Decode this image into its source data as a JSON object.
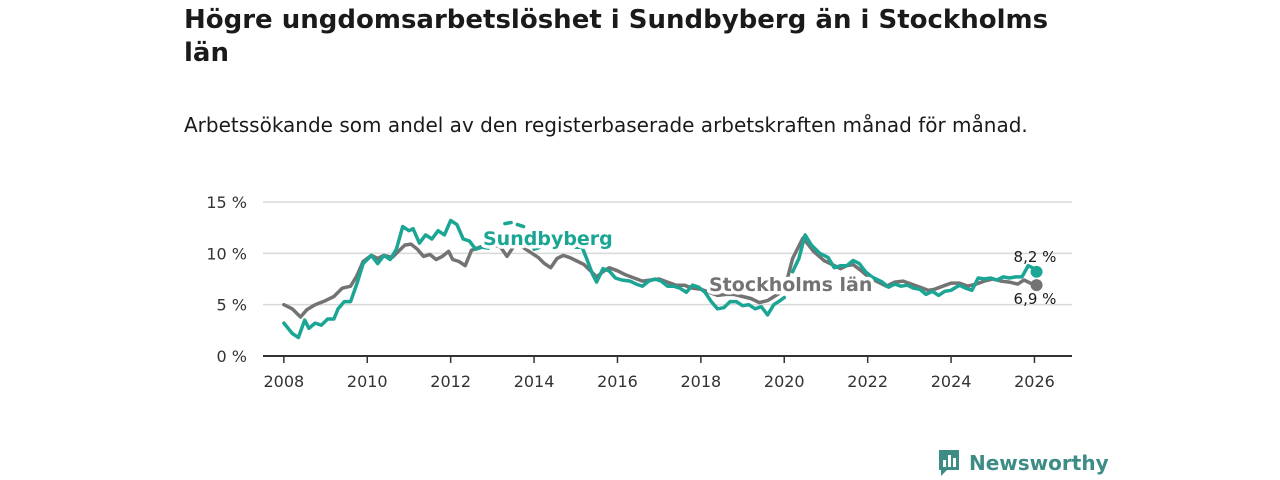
{
  "title": "Högre ungdomsarbetslöshet i Sundbyberg än i Stockholms län",
  "subtitle": "Arbetssökande som andel av den registerbaserade arbetskraften månad för månad.",
  "brand": {
    "name": "Newsworthy",
    "color": "#3d8c86",
    "icon": "bar-chart-speech-icon"
  },
  "colors": {
    "sundbyberg": "#1aa594",
    "stockholm": "#737373",
    "grid": "#d9d9d9",
    "axis": "#333333"
  },
  "chart_data": {
    "type": "line",
    "title": "Högre ungdomsarbetslöshet i Sundbyberg än i Stockholms län",
    "xlabel": "",
    "ylabel": "",
    "xlim": [
      2007.5,
      2026.9
    ],
    "ylim": [
      0,
      15
    ],
    "y_ticks": [
      0,
      5,
      10,
      15
    ],
    "y_tick_labels": [
      "0 %",
      "5 %",
      "10 %",
      "15 %"
    ],
    "x_ticks": [
      2008,
      2010,
      2012,
      2014,
      2016,
      2018,
      2020,
      2022,
      2024,
      2026
    ],
    "x_tick_labels": [
      "2008",
      "2010",
      "2012",
      "2014",
      "2016",
      "2018",
      "2020",
      "2022",
      "2024",
      "2026"
    ],
    "grid": true,
    "series": [
      {
        "name": "Stockholms län",
        "label": "Stockholms län",
        "end_label": "6,9 %",
        "points": [
          [
            2008.0,
            5.0
          ],
          [
            2008.2,
            4.6
          ],
          [
            2008.4,
            3.8
          ],
          [
            2008.55,
            4.5
          ],
          [
            2008.75,
            5.0
          ],
          [
            2009.0,
            5.4
          ],
          [
            2009.2,
            5.8
          ],
          [
            2009.4,
            6.6
          ],
          [
            2009.6,
            6.8
          ],
          [
            2009.75,
            7.8
          ],
          [
            2009.9,
            9.2
          ],
          [
            2010.1,
            9.8
          ],
          [
            2010.25,
            9.5
          ],
          [
            2010.4,
            9.8
          ],
          [
            2010.6,
            9.6
          ],
          [
            2010.75,
            10.2
          ],
          [
            2010.9,
            10.8
          ],
          [
            2011.05,
            10.9
          ],
          [
            2011.2,
            10.4
          ],
          [
            2011.35,
            9.7
          ],
          [
            2011.5,
            9.9
          ],
          [
            2011.65,
            9.4
          ],
          [
            2011.8,
            9.7
          ],
          [
            2011.95,
            10.2
          ],
          [
            2012.05,
            9.4
          ],
          [
            2012.2,
            9.2
          ],
          [
            2012.35,
            8.8
          ],
          [
            2012.5,
            10.3
          ],
          [
            2012.7,
            10.6
          ],
          [
            2012.85,
            10.9
          ],
          [
            2013.0,
            10.9
          ],
          [
            2013.2,
            10.6
          ],
          [
            2013.35,
            9.7
          ],
          [
            2013.5,
            10.6
          ],
          [
            2013.65,
            10.8
          ],
          [
            2013.8,
            10.4
          ],
          [
            2013.95,
            10.0
          ],
          [
            2014.1,
            9.6
          ],
          [
            2014.25,
            9.0
          ],
          [
            2014.4,
            8.6
          ],
          [
            2014.55,
            9.5
          ],
          [
            2014.7,
            9.8
          ],
          [
            2014.85,
            9.6
          ],
          [
            2015.0,
            9.3
          ],
          [
            2015.2,
            8.9
          ],
          [
            2015.35,
            8.3
          ],
          [
            2015.5,
            7.7
          ],
          [
            2015.65,
            8.2
          ],
          [
            2015.8,
            8.6
          ],
          [
            2016.0,
            8.3
          ],
          [
            2016.2,
            7.9
          ],
          [
            2016.4,
            7.6
          ],
          [
            2016.6,
            7.3
          ],
          [
            2016.8,
            7.4
          ],
          [
            2017.0,
            7.5
          ],
          [
            2017.2,
            7.2
          ],
          [
            2017.4,
            6.9
          ],
          [
            2017.6,
            6.9
          ],
          [
            2017.8,
            6.6
          ],
          [
            2018.0,
            6.5
          ],
          [
            2018.2,
            6.2
          ],
          [
            2018.4,
            5.9
          ],
          [
            2018.6,
            6.0
          ],
          [
            2018.8,
            6.0
          ],
          [
            2019.0,
            5.8
          ],
          [
            2019.2,
            5.6
          ],
          [
            2019.4,
            5.2
          ],
          [
            2019.6,
            5.4
          ],
          [
            2019.8,
            5.9
          ],
          [
            2020.0,
            6.4
          ],
          [
            2020.2,
            9.5
          ],
          [
            2020.45,
            11.5
          ],
          [
            2020.7,
            10.2
          ],
          [
            2020.95,
            9.3
          ],
          [
            2021.15,
            8.9
          ],
          [
            2021.35,
            8.5
          ],
          [
            2021.5,
            8.8
          ],
          [
            2021.65,
            8.9
          ],
          [
            2021.85,
            8.3
          ],
          [
            2022.05,
            7.6
          ],
          [
            2022.25,
            7.2
          ],
          [
            2022.45,
            6.8
          ],
          [
            2022.65,
            7.2
          ],
          [
            2022.85,
            7.3
          ],
          [
            2023.05,
            7.0
          ],
          [
            2023.25,
            6.7
          ],
          [
            2023.45,
            6.4
          ],
          [
            2023.6,
            6.5
          ],
          [
            2023.8,
            6.8
          ],
          [
            2024.0,
            7.1
          ],
          [
            2024.2,
            7.1
          ],
          [
            2024.4,
            6.8
          ],
          [
            2024.6,
            7.0
          ],
          [
            2024.8,
            7.3
          ],
          [
            2025.0,
            7.5
          ],
          [
            2025.2,
            7.3
          ],
          [
            2025.4,
            7.2
          ],
          [
            2025.6,
            7.0
          ],
          [
            2025.75,
            7.4
          ],
          [
            2025.9,
            7.1
          ],
          [
            2026.05,
            6.9
          ]
        ]
      },
      {
        "name": "Sundbyberg",
        "label": "Sundbyberg",
        "end_label": "8,2 %",
        "segments": [
          [
            [
              2008.0,
              3.2
            ],
            [
              2008.2,
              2.2
            ],
            [
              2008.35,
              1.8
            ],
            [
              2008.5,
              3.5
            ],
            [
              2008.6,
              2.7
            ],
            [
              2008.75,
              3.2
            ],
            [
              2008.9,
              3.0
            ],
            [
              2009.05,
              3.6
            ],
            [
              2009.2,
              3.6
            ],
            [
              2009.3,
              4.6
            ],
            [
              2009.45,
              5.3
            ],
            [
              2009.6,
              5.3
            ],
            [
              2009.75,
              7.0
            ],
            [
              2009.9,
              9.0
            ],
            [
              2010.1,
              9.8
            ],
            [
              2010.25,
              9.0
            ],
            [
              2010.4,
              9.8
            ],
            [
              2010.55,
              9.4
            ],
            [
              2010.7,
              10.4
            ],
            [
              2010.85,
              12.6
            ],
            [
              2011.0,
              12.2
            ],
            [
              2011.1,
              12.4
            ],
            [
              2011.25,
              11.0
            ],
            [
              2011.4,
              11.8
            ],
            [
              2011.55,
              11.4
            ],
            [
              2011.7,
              12.2
            ],
            [
              2011.85,
              11.8
            ],
            [
              2012.0,
              13.2
            ],
            [
              2012.15,
              12.8
            ],
            [
              2012.3,
              11.4
            ],
            [
              2012.45,
              11.2
            ],
            [
              2012.6,
              10.4
            ],
            [
              2012.75,
              10.6
            ],
            [
              2012.9,
              10.5
            ],
            [
              2013.05,
              11.5
            ]
          ],
          [
            [
              2013.3,
              12.9
            ],
            [
              2013.45,
              13.0
            ]
          ],
          [
            [
              2013.6,
              12.8
            ],
            [
              2013.75,
              12.6
            ]
          ],
          [
            [
              2014.0,
              10.4
            ],
            [
              2014.15,
              10.6
            ]
          ],
          [
            [
              2015.0,
              10.6
            ],
            [
              2015.15,
              10.6
            ],
            [
              2015.25,
              9.6
            ],
            [
              2015.4,
              8.0
            ],
            [
              2015.5,
              7.2
            ],
            [
              2015.65,
              8.5
            ],
            [
              2015.8,
              8.3
            ],
            [
              2015.95,
              7.6
            ],
            [
              2016.1,
              7.4
            ],
            [
              2016.3,
              7.3
            ],
            [
              2016.45,
              7.0
            ],
            [
              2016.6,
              6.8
            ],
            [
              2016.75,
              7.3
            ],
            [
              2016.9,
              7.5
            ],
            [
              2017.05,
              7.3
            ],
            [
              2017.2,
              6.8
            ],
            [
              2017.35,
              6.8
            ],
            [
              2017.5,
              6.6
            ],
            [
              2017.65,
              6.2
            ],
            [
              2017.8,
              6.9
            ],
            [
              2017.95,
              6.7
            ],
            [
              2018.1,
              6.2
            ],
            [
              2018.25,
              5.3
            ],
            [
              2018.4,
              4.6
            ],
            [
              2018.55,
              4.7
            ],
            [
              2018.7,
              5.3
            ],
            [
              2018.85,
              5.3
            ],
            [
              2019.0,
              4.9
            ],
            [
              2019.15,
              5.0
            ],
            [
              2019.3,
              4.6
            ],
            [
              2019.45,
              4.8
            ],
            [
              2019.6,
              4.0
            ],
            [
              2019.75,
              5.0
            ],
            [
              2019.9,
              5.4
            ],
            [
              2020.0,
              5.7
            ]
          ],
          [
            [
              2020.2,
              8.2
            ],
            [
              2020.35,
              9.5
            ],
            [
              2020.5,
              11.8
            ],
            [
              2020.65,
              10.8
            ],
            [
              2020.85,
              10.0
            ],
            [
              2021.05,
              9.6
            ],
            [
              2021.2,
              8.6
            ],
            [
              2021.35,
              8.8
            ],
            [
              2021.5,
              8.8
            ],
            [
              2021.65,
              9.3
            ],
            [
              2021.8,
              9.0
            ],
            [
              2021.95,
              8.2
            ],
            [
              2022.1,
              7.7
            ],
            [
              2022.2,
              7.5
            ],
            [
              2022.35,
              7.2
            ],
            [
              2022.5,
              6.7
            ],
            [
              2022.65,
              7.0
            ],
            [
              2022.8,
              6.8
            ],
            [
              2022.95,
              6.9
            ],
            [
              2023.1,
              6.6
            ],
            [
              2023.25,
              6.5
            ],
            [
              2023.4,
              6.0
            ],
            [
              2023.55,
              6.3
            ],
            [
              2023.7,
              5.9
            ],
            [
              2023.85,
              6.3
            ],
            [
              2024.0,
              6.4
            ],
            [
              2024.2,
              6.9
            ],
            [
              2024.35,
              6.6
            ],
            [
              2024.5,
              6.4
            ],
            [
              2024.65,
              7.6
            ],
            [
              2024.8,
              7.5
            ],
            [
              2024.95,
              7.6
            ],
            [
              2025.1,
              7.4
            ],
            [
              2025.25,
              7.7
            ],
            [
              2025.4,
              7.6
            ],
            [
              2025.55,
              7.7
            ],
            [
              2025.7,
              7.7
            ],
            [
              2025.85,
              8.8
            ],
            [
              2025.95,
              8.6
            ],
            [
              2026.05,
              8.2
            ]
          ]
        ]
      }
    ]
  }
}
